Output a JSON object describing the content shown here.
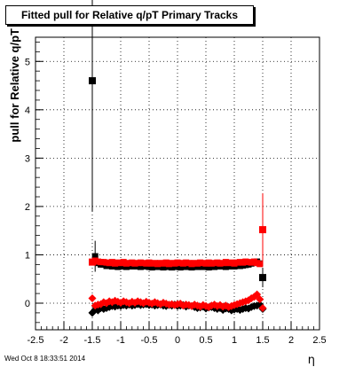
{
  "chart_data": {
    "type": "scatter",
    "title": "Fitted pull for Relative q/pT  Primary Tracks",
    "xlabel": "η",
    "ylabel": "pull for Relative q/pT",
    "xlim": [
      -2.5,
      2.5
    ],
    "ylim": [
      -0.55,
      5.5
    ],
    "x_ticks": [
      "-2.5",
      "-2",
      "-1.5",
      "-1",
      "-0.5",
      "0",
      "0.5",
      "1",
      "1.5",
      "2",
      "2.5"
    ],
    "y_ticks": [
      "0",
      "1",
      "2",
      "3",
      "4",
      "5"
    ],
    "grid": true,
    "legend": "none",
    "series": [
      {
        "color": "#000000",
        "marker": "square",
        "x": [
          -1.5,
          -1.45,
          -1.4,
          -1.35,
          -1.3,
          -1.25,
          -1.2,
          -1.15,
          -1.1,
          -1.05,
          -1.0,
          -0.95,
          -0.9,
          -0.85,
          -0.8,
          -0.75,
          -0.7,
          -0.65,
          -0.6,
          -0.55,
          -0.5,
          -0.45,
          -0.4,
          -0.35,
          -0.3,
          -0.25,
          -0.2,
          -0.15,
          -0.1,
          -0.05,
          0.0,
          0.05,
          0.1,
          0.15,
          0.2,
          0.25,
          0.3,
          0.35,
          0.4,
          0.45,
          0.5,
          0.55,
          0.6,
          0.65,
          0.7,
          0.75,
          0.8,
          0.85,
          0.9,
          0.95,
          1.0,
          1.05,
          1.1,
          1.15,
          1.2,
          1.25,
          1.3,
          1.35,
          1.4,
          1.45,
          1.5
        ],
        "y": [
          4.6,
          0.97,
          0.83,
          0.8,
          0.8,
          0.77,
          0.78,
          0.76,
          0.77,
          0.75,
          0.76,
          0.76,
          0.75,
          0.77,
          0.76,
          0.78,
          0.76,
          0.75,
          0.76,
          0.77,
          0.75,
          0.74,
          0.76,
          0.75,
          0.76,
          0.74,
          0.75,
          0.76,
          0.74,
          0.75,
          0.76,
          0.74,
          0.76,
          0.75,
          0.77,
          0.74,
          0.76,
          0.75,
          0.77,
          0.75,
          0.76,
          0.74,
          0.76,
          0.75,
          0.76,
          0.77,
          0.76,
          0.75,
          0.76,
          0.77,
          0.76,
          0.78,
          0.77,
          0.78,
          0.79,
          0.8,
          0.82,
          0.84,
          0.86,
          0.82,
          0.53
        ],
        "yerr": [
          2.7,
          0.32,
          0.06,
          0.04,
          0.03,
          0.03,
          0.03,
          0.03,
          0.03,
          0.03,
          0.03,
          0.03,
          0.03,
          0.03,
          0.03,
          0.03,
          0.03,
          0.03,
          0.03,
          0.03,
          0.03,
          0.03,
          0.03,
          0.03,
          0.03,
          0.03,
          0.03,
          0.03,
          0.03,
          0.03,
          0.03,
          0.03,
          0.03,
          0.03,
          0.03,
          0.03,
          0.03,
          0.03,
          0.03,
          0.03,
          0.03,
          0.03,
          0.03,
          0.03,
          0.03,
          0.03,
          0.03,
          0.03,
          0.03,
          0.03,
          0.03,
          0.03,
          0.03,
          0.03,
          0.03,
          0.03,
          0.03,
          0.04,
          0.05,
          0.07,
          0.2
        ]
      },
      {
        "color": "#000000",
        "marker": "diamond",
        "x": [
          -1.5,
          -1.45,
          -1.4,
          -1.35,
          -1.3,
          -1.25,
          -1.2,
          -1.15,
          -1.1,
          -1.05,
          -1.0,
          -0.95,
          -0.9,
          -0.85,
          -0.8,
          -0.75,
          -0.7,
          -0.65,
          -0.6,
          -0.55,
          -0.5,
          -0.45,
          -0.4,
          -0.35,
          -0.3,
          -0.25,
          -0.2,
          -0.15,
          -0.1,
          -0.05,
          0.0,
          0.05,
          0.1,
          0.15,
          0.2,
          0.25,
          0.3,
          0.35,
          0.4,
          0.45,
          0.5,
          0.55,
          0.6,
          0.65,
          0.7,
          0.75,
          0.8,
          0.85,
          0.9,
          0.95,
          1.0,
          1.05,
          1.1,
          1.15,
          1.2,
          1.25,
          1.3,
          1.35,
          1.4,
          1.45,
          1.5
        ],
        "y": [
          -0.2,
          -0.13,
          -0.15,
          -0.1,
          -0.12,
          -0.1,
          -0.08,
          -0.06,
          -0.07,
          -0.05,
          -0.06,
          -0.04,
          -0.05,
          -0.03,
          -0.05,
          -0.04,
          -0.02,
          -0.04,
          -0.03,
          -0.02,
          -0.04,
          -0.03,
          -0.05,
          -0.04,
          -0.03,
          -0.05,
          -0.06,
          -0.04,
          -0.05,
          -0.03,
          -0.06,
          -0.05,
          -0.04,
          -0.07,
          -0.05,
          -0.06,
          -0.08,
          -0.1,
          -0.09,
          -0.07,
          -0.11,
          -0.09,
          -0.08,
          -0.1,
          -0.12,
          -0.1,
          -0.14,
          -0.11,
          -0.12,
          -0.15,
          -0.13,
          -0.12,
          -0.14,
          -0.12,
          -0.1,
          -0.11,
          -0.08,
          -0.06,
          -0.05,
          -0.03,
          -0.12
        ],
        "yerr": [
          0.05,
          0.03,
          0.03,
          0.02,
          0.02,
          0.02,
          0.02,
          0.02,
          0.02,
          0.02,
          0.02,
          0.02,
          0.02,
          0.02,
          0.02,
          0.02,
          0.02,
          0.02,
          0.02,
          0.02,
          0.02,
          0.02,
          0.02,
          0.02,
          0.02,
          0.02,
          0.02,
          0.02,
          0.02,
          0.02,
          0.02,
          0.02,
          0.02,
          0.02,
          0.02,
          0.02,
          0.02,
          0.02,
          0.02,
          0.02,
          0.02,
          0.02,
          0.02,
          0.02,
          0.02,
          0.02,
          0.02,
          0.02,
          0.02,
          0.02,
          0.02,
          0.02,
          0.02,
          0.02,
          0.02,
          0.02,
          0.02,
          0.02,
          0.03,
          0.04,
          0.05
        ]
      },
      {
        "color": "#ff0000",
        "marker": "square",
        "x": [
          -1.5,
          -1.45,
          -1.4,
          -1.35,
          -1.3,
          -1.25,
          -1.2,
          -1.15,
          -1.1,
          -1.05,
          -1.0,
          -0.95,
          -0.9,
          -0.85,
          -0.8,
          -0.75,
          -0.7,
          -0.65,
          -0.6,
          -0.55,
          -0.5,
          -0.45,
          -0.4,
          -0.35,
          -0.3,
          -0.25,
          -0.2,
          -0.15,
          -0.1,
          -0.05,
          0.0,
          0.05,
          0.1,
          0.15,
          0.2,
          0.25,
          0.3,
          0.35,
          0.4,
          0.45,
          0.5,
          0.55,
          0.6,
          0.65,
          0.7,
          0.75,
          0.8,
          0.85,
          0.9,
          0.95,
          1.0,
          1.05,
          1.1,
          1.15,
          1.2,
          1.25,
          1.3,
          1.35,
          1.4,
          1.45,
          1.5
        ],
        "y": [
          0.85,
          0.88,
          0.86,
          0.85,
          0.85,
          0.84,
          0.83,
          0.85,
          0.82,
          0.84,
          0.83,
          0.85,
          0.82,
          0.83,
          0.84,
          0.82,
          0.83,
          0.84,
          0.83,
          0.82,
          0.84,
          0.82,
          0.83,
          0.81,
          0.83,
          0.82,
          0.84,
          0.81,
          0.83,
          0.82,
          0.84,
          0.83,
          0.82,
          0.84,
          0.83,
          0.81,
          0.83,
          0.82,
          0.84,
          0.83,
          0.82,
          0.84,
          0.82,
          0.83,
          0.84,
          0.82,
          0.83,
          0.85,
          0.83,
          0.84,
          0.82,
          0.84,
          0.85,
          0.84,
          0.86,
          0.85,
          0.84,
          0.86,
          0.83,
          0.81,
          1.52
        ],
        "yerr": [
          0.04,
          0.03,
          0.03,
          0.03,
          0.03,
          0.03,
          0.03,
          0.03,
          0.03,
          0.03,
          0.03,
          0.03,
          0.03,
          0.03,
          0.03,
          0.03,
          0.03,
          0.03,
          0.03,
          0.03,
          0.03,
          0.03,
          0.03,
          0.03,
          0.03,
          0.03,
          0.03,
          0.03,
          0.03,
          0.03,
          0.03,
          0.03,
          0.03,
          0.03,
          0.03,
          0.03,
          0.03,
          0.03,
          0.03,
          0.03,
          0.03,
          0.03,
          0.03,
          0.03,
          0.03,
          0.03,
          0.03,
          0.03,
          0.03,
          0.03,
          0.03,
          0.03,
          0.03,
          0.03,
          0.03,
          0.03,
          0.03,
          0.03,
          0.04,
          0.05,
          0.75
        ]
      },
      {
        "color": "#ff0000",
        "marker": "diamond",
        "x": [
          -1.5,
          -1.45,
          -1.4,
          -1.35,
          -1.3,
          -1.25,
          -1.2,
          -1.15,
          -1.1,
          -1.05,
          -1.0,
          -0.95,
          -0.9,
          -0.85,
          -0.8,
          -0.75,
          -0.7,
          -0.65,
          -0.6,
          -0.55,
          -0.5,
          -0.45,
          -0.4,
          -0.35,
          -0.3,
          -0.25,
          -0.2,
          -0.15,
          -0.1,
          -0.05,
          0.0,
          0.05,
          0.1,
          0.15,
          0.2,
          0.25,
          0.3,
          0.35,
          0.4,
          0.45,
          0.5,
          0.55,
          0.6,
          0.65,
          0.7,
          0.75,
          0.8,
          0.85,
          0.9,
          0.95,
          1.0,
          1.05,
          1.1,
          1.15,
          1.2,
          1.25,
          1.3,
          1.35,
          1.4,
          1.45,
          1.5
        ],
        "y": [
          0.1,
          -0.05,
          -0.03,
          -0.02,
          0.02,
          0.0,
          0.04,
          0.02,
          0.05,
          0.03,
          0.01,
          0.04,
          0.02,
          0.0,
          0.03,
          0.01,
          0.04,
          0.02,
          0.0,
          0.03,
          0.01,
          -0.01,
          0.02,
          0.0,
          -0.02,
          0.01,
          -0.01,
          -0.03,
          -0.02,
          -0.04,
          -0.02,
          -0.01,
          -0.05,
          -0.03,
          -0.04,
          -0.06,
          -0.03,
          -0.05,
          -0.07,
          -0.04,
          -0.06,
          -0.08,
          -0.05,
          -0.03,
          -0.06,
          -0.04,
          -0.07,
          -0.05,
          -0.08,
          -0.06,
          -0.04,
          -0.02,
          0.0,
          0.02,
          0.04,
          0.06,
          0.1,
          0.13,
          0.18,
          0.08,
          -0.1
        ],
        "yerr": [
          0.05,
          0.03,
          0.02,
          0.02,
          0.02,
          0.02,
          0.02,
          0.02,
          0.02,
          0.02,
          0.02,
          0.02,
          0.02,
          0.02,
          0.02,
          0.02,
          0.02,
          0.02,
          0.02,
          0.02,
          0.02,
          0.02,
          0.02,
          0.02,
          0.02,
          0.02,
          0.02,
          0.02,
          0.02,
          0.02,
          0.02,
          0.02,
          0.02,
          0.02,
          0.02,
          0.02,
          0.02,
          0.02,
          0.02,
          0.02,
          0.02,
          0.02,
          0.02,
          0.02,
          0.02,
          0.02,
          0.02,
          0.02,
          0.02,
          0.02,
          0.02,
          0.02,
          0.02,
          0.02,
          0.02,
          0.02,
          0.02,
          0.03,
          0.04,
          0.05,
          0.06
        ]
      }
    ]
  },
  "footer": {
    "timestamp": "Wed Oct  8 18:33:51 2014"
  }
}
